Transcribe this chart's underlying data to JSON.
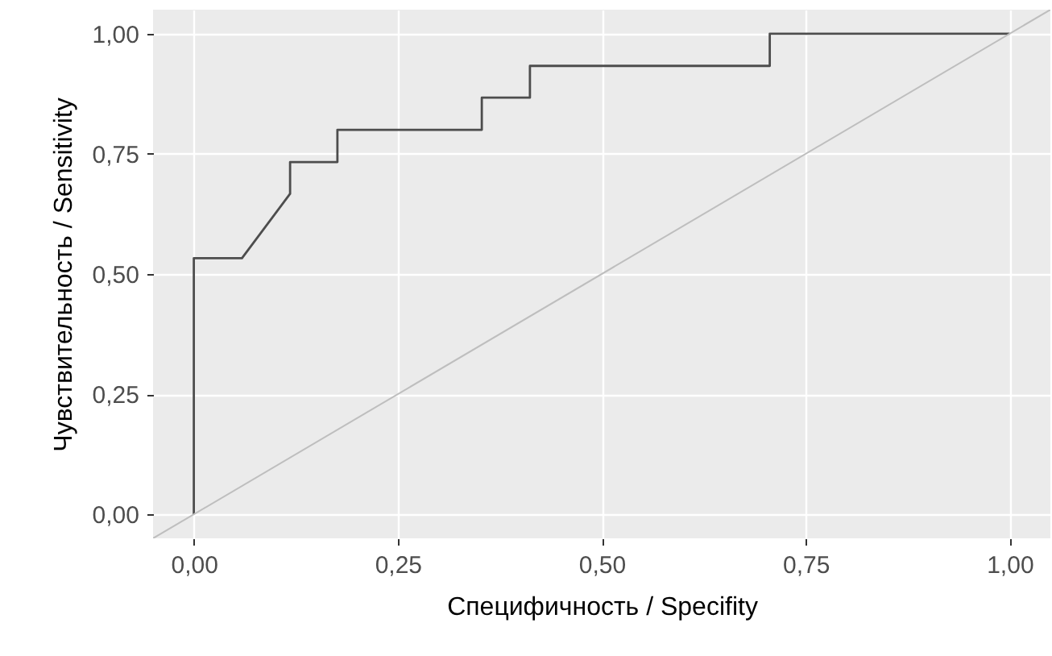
{
  "chart_data": {
    "type": "line",
    "xlabel": "Специфичность / Specifity",
    "ylabel": "Чувствительность / Sensitivity",
    "series": [
      {
        "color": "#4d4d4d",
        "x": [
          0,
          0,
          0.059,
          0.118,
          0.118,
          0.176,
          0.176,
          0.353,
          0.353,
          0.412,
          0.412,
          0.706,
          0.706,
          1
        ],
        "values": [
          0,
          0.533,
          0.533,
          0.667,
          0.733,
          0.733,
          0.8,
          0.8,
          0.867,
          0.867,
          0.933,
          0.933,
          1,
          1
        ]
      },
      {
        "color": "#bebebe",
        "x": [
          -0.05,
          1.05
        ],
        "values": [
          -0.05,
          1.05
        ]
      }
    ],
    "xlim": [
      -0.05,
      1.05
    ],
    "ylim": [
      -0.05,
      1.05
    ],
    "xticks": [
      {
        "value": 0,
        "label": "0,00"
      },
      {
        "value": 0.25,
        "label": "0,25"
      },
      {
        "value": 0.5,
        "label": "0,50"
      },
      {
        "value": 0.75,
        "label": "0,75"
      },
      {
        "value": 1,
        "label": "1,00"
      }
    ],
    "yticks": [
      {
        "value": 0,
        "label": "0,00"
      },
      {
        "value": 0.25,
        "label": "0,25"
      },
      {
        "value": 0.5,
        "label": "0,50"
      },
      {
        "value": 0.75,
        "label": "0,75"
      },
      {
        "value": 1,
        "label": "1,00"
      }
    ],
    "grid": true,
    "line_style": "solid"
  }
}
